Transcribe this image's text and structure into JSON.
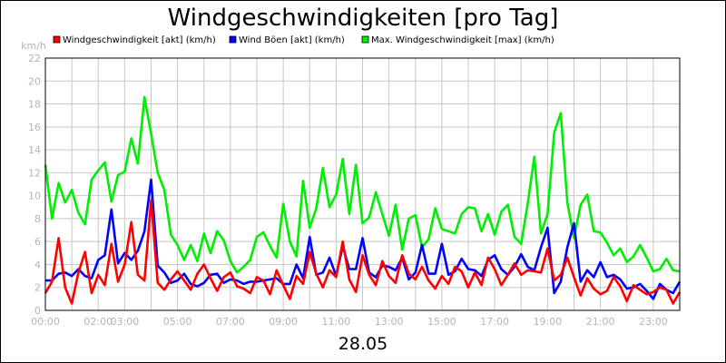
{
  "chart_data": {
    "type": "line",
    "title": "Windgeschwindigkeiten [pro Tag]",
    "ylabel": "km/h",
    "xlabel": "28.05",
    "ylim": [
      0,
      22
    ],
    "y_ticks": [
      0,
      2,
      4,
      6,
      8,
      10,
      12,
      14,
      16,
      18,
      20,
      22
    ],
    "x_range_hours": [
      0,
      24
    ],
    "x_ticks": [
      {
        "hour": 0,
        "label": "00:00"
      },
      {
        "hour": 2,
        "label": "02:00"
      },
      {
        "hour": 3,
        "label": "03:00"
      },
      {
        "hour": 5,
        "label": "05:00"
      },
      {
        "hour": 7,
        "label": "07:00"
      },
      {
        "hour": 9,
        "label": "09:00"
      },
      {
        "hour": 11,
        "label": "11:00"
      },
      {
        "hour": 13,
        "label": "13:00"
      },
      {
        "hour": 15,
        "label": "15:00"
      },
      {
        "hour": 17,
        "label": "17:00"
      },
      {
        "hour": 19,
        "label": "19:00"
      },
      {
        "hour": 21,
        "label": "21:00"
      },
      {
        "hour": 23,
        "label": "23:00"
      }
    ],
    "grid": true,
    "legend_position": "top",
    "series": [
      {
        "name": "Windgeschwindigkeit [akt] (km/h)",
        "color": "#ff0000",
        "x": [
          0,
          0.25,
          0.5,
          0.75,
          1,
          1.25,
          1.5,
          1.75,
          2,
          2.25,
          2.5,
          2.75,
          3,
          3.25,
          3.5,
          3.75,
          4,
          4.25,
          4.5,
          4.75,
          5,
          5.25,
          5.5,
          5.75,
          6,
          6.25,
          6.5,
          6.75,
          7,
          7.25,
          7.5,
          7.75,
          8,
          8.25,
          8.5,
          8.75,
          9,
          9.25,
          9.5,
          9.75,
          10,
          10.25,
          10.5,
          10.75,
          11,
          11.25,
          11.5,
          11.75,
          12,
          12.25,
          12.5,
          12.75,
          13,
          13.25,
          13.5,
          13.75,
          14,
          14.25,
          14.5,
          14.75,
          15,
          15.25,
          15.5,
          15.75,
          16,
          16.25,
          16.5,
          16.75,
          17,
          17.25,
          17.5,
          17.75,
          18,
          18.25,
          18.5,
          18.75,
          19,
          19.25,
          19.5,
          19.75,
          20,
          20.25,
          20.5,
          20.75,
          21,
          21.25,
          21.5,
          21.75,
          22,
          22.25,
          22.5,
          22.75,
          23,
          23.25,
          23.5,
          23.75,
          24
        ],
        "values": [
          1.5,
          2.5,
          6.3,
          2.0,
          0.6,
          3.3,
          5.1,
          1.5,
          3.1,
          2.2,
          5.8,
          2.5,
          4.0,
          7.7,
          3.1,
          2.6,
          9.6,
          2.4,
          1.8,
          2.7,
          3.4,
          2.6,
          1.8,
          3.2,
          4.0,
          2.8,
          1.7,
          2.9,
          3.3,
          2.1,
          1.9,
          1.5,
          2.9,
          2.6,
          1.4,
          3.5,
          2.2,
          1.0,
          3.0,
          2.3,
          5.1,
          3.2,
          2.0,
          3.5,
          2.9,
          6.0,
          2.7,
          1.6,
          4.8,
          3.1,
          2.2,
          4.3,
          3.0,
          2.4,
          4.8,
          3.2,
          2.7,
          3.8,
          2.6,
          1.9,
          3.0,
          2.3,
          3.8,
          3.4,
          2.0,
          3.3,
          2.2,
          4.6,
          3.6,
          2.2,
          3.1,
          4.1,
          3.1,
          3.5,
          3.4,
          3.3,
          5.4,
          2.6,
          3.1,
          4.6,
          2.9,
          1.3,
          2.8,
          1.9,
          1.4,
          1.7,
          2.9,
          2.1,
          0.8,
          2.2,
          1.8,
          1.4,
          1.6,
          2.0,
          1.8,
          0.6,
          1.6
        ]
      },
      {
        "name": "Wind Böen [akt] (km/h)",
        "color": "#0000ff",
        "x": [
          0,
          0.25,
          0.5,
          0.75,
          1,
          1.25,
          1.5,
          1.75,
          2,
          2.25,
          2.5,
          2.75,
          3,
          3.25,
          3.5,
          3.75,
          4,
          4.25,
          4.5,
          4.75,
          5,
          5.25,
          5.5,
          5.75,
          6,
          6.25,
          6.5,
          6.75,
          7,
          7.25,
          7.5,
          7.75,
          8,
          8.25,
          8.5,
          8.75,
          9,
          9.25,
          9.5,
          9.75,
          10,
          10.25,
          10.5,
          10.75,
          11,
          11.25,
          11.5,
          11.75,
          12,
          12.25,
          12.5,
          12.75,
          13,
          13.25,
          13.5,
          13.75,
          14,
          14.25,
          14.5,
          14.75,
          15,
          15.25,
          15.5,
          15.75,
          16,
          16.25,
          16.5,
          16.75,
          17,
          17.25,
          17.5,
          17.75,
          18,
          18.25,
          18.5,
          18.75,
          19,
          19.25,
          19.5,
          19.75,
          20,
          20.25,
          20.5,
          20.75,
          21,
          21.25,
          21.5,
          21.75,
          22,
          22.25,
          22.5,
          22.75,
          23,
          23.25,
          23.5,
          23.75,
          24
        ],
        "values": [
          2.6,
          2.6,
          3.2,
          3.3,
          3.0,
          3.6,
          3.0,
          2.8,
          4.4,
          4.8,
          8.8,
          4.1,
          5.0,
          4.4,
          5.2,
          6.9,
          11.4,
          3.9,
          3.3,
          2.4,
          2.6,
          3.2,
          2.3,
          2.1,
          2.4,
          3.1,
          3.2,
          2.4,
          2.7,
          2.6,
          2.3,
          2.5,
          2.5,
          2.6,
          2.7,
          2.8,
          2.3,
          2.3,
          4.0,
          2.8,
          6.4,
          3.1,
          3.3,
          4.6,
          3.0,
          5.6,
          3.6,
          3.6,
          6.3,
          3.3,
          2.9,
          3.9,
          3.8,
          3.5,
          4.6,
          2.7,
          3.3,
          5.7,
          3.2,
          3.2,
          5.8,
          3.1,
          3.4,
          4.5,
          3.6,
          3.5,
          3.0,
          4.4,
          4.8,
          3.6,
          3.1,
          3.8,
          4.9,
          3.8,
          3.5,
          5.5,
          7.2,
          1.5,
          2.5,
          5.5,
          7.6,
          2.5,
          3.5,
          2.9,
          4.2,
          2.9,
          3.1,
          2.7,
          1.9,
          2.0,
          2.3,
          1.7,
          1.0,
          2.3,
          1.8,
          1.5,
          2.5
        ]
      },
      {
        "name": "Max. Windgeschwindigkeit [max] (km/h)",
        "color": "#00ee00",
        "x": [
          0,
          0.25,
          0.5,
          0.75,
          1,
          1.25,
          1.5,
          1.75,
          2,
          2.25,
          2.5,
          2.75,
          3,
          3.25,
          3.5,
          3.75,
          4,
          4.25,
          4.5,
          4.75,
          5,
          5.25,
          5.5,
          5.75,
          6,
          6.25,
          6.5,
          6.75,
          7,
          7.25,
          7.5,
          7.75,
          8,
          8.25,
          8.5,
          8.75,
          9,
          9.25,
          9.5,
          9.75,
          10,
          10.25,
          10.5,
          10.75,
          11,
          11.25,
          11.5,
          11.75,
          12,
          12.25,
          12.5,
          12.75,
          13,
          13.25,
          13.5,
          13.75,
          14,
          14.25,
          14.5,
          14.75,
          15,
          15.25,
          15.5,
          15.75,
          16,
          16.25,
          16.5,
          16.75,
          17,
          17.25,
          17.5,
          17.75,
          18,
          18.25,
          18.5,
          18.75,
          19,
          19.25,
          19.5,
          19.75,
          20,
          20.25,
          20.5,
          20.75,
          21,
          21.25,
          21.5,
          21.75,
          22,
          22.25,
          22.5,
          22.75,
          23,
          23.25,
          23.5,
          23.75,
          24
        ],
        "values": [
          12.7,
          8.0,
          11.1,
          9.4,
          10.5,
          8.5,
          7.5,
          11.4,
          12.2,
          12.9,
          9.5,
          11.8,
          12.1,
          15.0,
          12.8,
          18.6,
          15.4,
          12.0,
          10.5,
          6.6,
          5.7,
          4.4,
          5.7,
          4.3,
          6.7,
          5.0,
          6.9,
          6.1,
          4.3,
          3.3,
          3.8,
          4.4,
          6.4,
          6.8,
          5.6,
          4.6,
          9.3,
          6.0,
          4.7,
          11.3,
          7.2,
          8.9,
          12.4,
          9.0,
          10.1,
          13.2,
          8.4,
          12.7,
          7.6,
          8.1,
          10.3,
          8.4,
          6.5,
          9.2,
          5.3,
          8.0,
          8.3,
          5.5,
          6.2,
          8.9,
          7.1,
          6.9,
          6.7,
          8.4,
          9.0,
          8.9,
          6.9,
          8.4,
          6.6,
          8.6,
          9.2,
          6.4,
          5.8,
          9.3,
          13.4,
          6.7,
          8.4,
          15.5,
          17.2,
          9.4,
          6.3,
          9.2,
          10.1,
          6.9,
          6.8,
          5.9,
          4.8,
          5.4,
          4.2,
          4.7,
          5.7,
          4.6,
          3.4,
          3.6,
          4.5,
          3.5,
          3.4
        ]
      }
    ]
  }
}
